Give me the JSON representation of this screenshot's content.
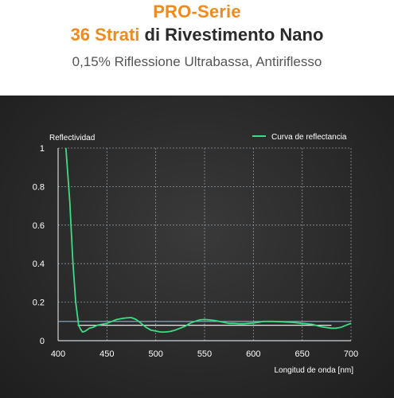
{
  "header": {
    "line1": "PRO-Serie",
    "line2_accent": "36 Strati",
    "line2_rest": " di Rivestimento Nano",
    "line3": "0,15% Riflessione Ultrabassa, Antiriflesso"
  },
  "colors": {
    "accent": "#f08a1c",
    "curve": "#3ddc84",
    "reference": "#8fb0c8",
    "axis": "#cfd6dc",
    "grid": "#8a96a0"
  },
  "chart_data": {
    "type": "line",
    "title": "",
    "ylabel": "Reflectividad",
    "xlabel": "Longitud de onda [nm]",
    "xlim": [
      400,
      700
    ],
    "ylim": [
      0,
      1
    ],
    "x_ticks": [
      "400",
      "450",
      "500",
      "550",
      "600",
      "650",
      "700"
    ],
    "y_ticks": [
      "0",
      "0.2",
      "0.4",
      "0.6",
      "0.8",
      "1"
    ],
    "grid": true,
    "legend_position": "top-right",
    "series": [
      {
        "name": "Curva de reflectancia",
        "color": "#3ddc84",
        "x": [
          408,
          412,
          415,
          418,
          421,
          423,
          425,
          428,
          432,
          436,
          440,
          445,
          450,
          455,
          460,
          465,
          470,
          475,
          480,
          485,
          490,
          495,
          500,
          505,
          510,
          515,
          520,
          525,
          530,
          535,
          540,
          545,
          550,
          555,
          560,
          565,
          570,
          575,
          580,
          585,
          590,
          595,
          600,
          605,
          610,
          620,
          630,
          640,
          650,
          660,
          670,
          680,
          685,
          690,
          695,
          700
        ],
        "y": [
          1.0,
          0.72,
          0.42,
          0.2,
          0.08,
          0.06,
          0.045,
          0.05,
          0.065,
          0.07,
          0.08,
          0.085,
          0.09,
          0.1,
          0.11,
          0.115,
          0.118,
          0.12,
          0.11,
          0.09,
          0.07,
          0.055,
          0.05,
          0.045,
          0.045,
          0.048,
          0.055,
          0.065,
          0.075,
          0.09,
          0.1,
          0.108,
          0.11,
          0.108,
          0.105,
          0.1,
          0.095,
          0.09,
          0.09,
          0.088,
          0.088,
          0.09,
          0.092,
          0.095,
          0.1,
          0.1,
          0.098,
          0.095,
          0.09,
          0.085,
          0.072,
          0.065,
          0.065,
          0.07,
          0.08,
          0.09
        ]
      }
    ],
    "reference_lines": [
      {
        "y": 0.1,
        "x": [
          400,
          700
        ],
        "color": "#8fb0c8"
      },
      {
        "y": 0.08,
        "x": [
          420,
          680
        ],
        "color": "#e8e8e8"
      }
    ]
  }
}
